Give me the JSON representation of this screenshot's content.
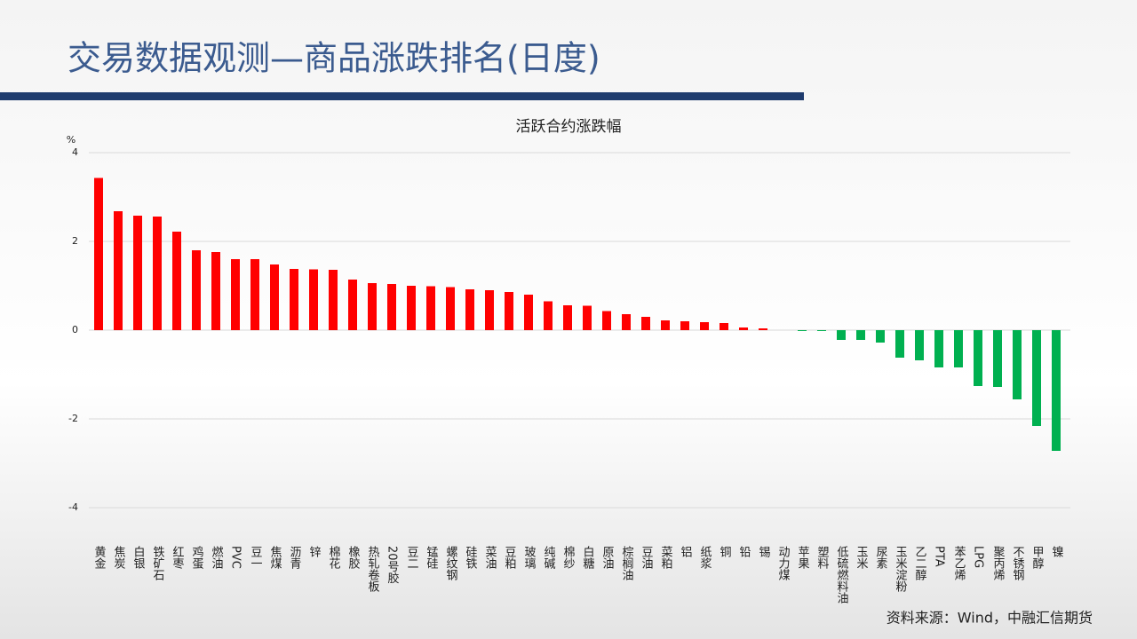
{
  "header": {
    "title": "交易数据观测—商品涨跌排名(日度)"
  },
  "chart_data": {
    "type": "bar",
    "title": "活跃合约涨跌幅",
    "y_label": "%",
    "categories": [
      "黄金",
      "焦炭",
      "白银",
      "铁矿石",
      "红枣",
      "鸡蛋",
      "燃油",
      "PVC",
      "豆一",
      "焦煤",
      "沥青",
      "锌",
      "棉花",
      "橡胶",
      "热轧卷板",
      "20号胶",
      "豆二",
      "锰硅",
      "螺纹钢",
      "硅铁",
      "菜油",
      "豆粕",
      "玻璃",
      "纯碱",
      "棉纱",
      "白糖",
      "原油",
      "棕榈油",
      "豆油",
      "菜粕",
      "铝",
      "纸浆",
      "铜",
      "铅",
      "锡",
      "动力煤",
      "苹果",
      "塑料",
      "低硫燃料油",
      "玉米",
      "尿素",
      "玉米淀粉",
      "乙二醇",
      "PTA",
      "苯乙烯",
      "LPG",
      "聚丙烯",
      "不锈钢",
      "甲醇",
      "镍"
    ],
    "values": [
      3.43,
      2.68,
      2.58,
      2.56,
      2.22,
      1.8,
      1.76,
      1.6,
      1.6,
      1.48,
      1.38,
      1.37,
      1.36,
      1.14,
      1.06,
      1.04,
      1.0,
      0.99,
      0.97,
      0.92,
      0.9,
      0.86,
      0.8,
      0.65,
      0.56,
      0.55,
      0.43,
      0.36,
      0.3,
      0.22,
      0.2,
      0.18,
      0.16,
      0.06,
      0.04,
      0,
      -0.02,
      -0.02,
      -0.22,
      -0.22,
      -0.28,
      -0.62,
      -0.68,
      -0.84,
      -0.84,
      -1.26,
      -1.28,
      -1.56,
      -2.16,
      -2.72
    ],
    "positive_color": "#ff0000",
    "negative_color": "#00b050",
    "ylim": [
      -4,
      4
    ],
    "yticks": [
      -4,
      -2,
      0,
      2,
      4
    ],
    "grid": true
  },
  "source": "资料来源：Wind，中融汇信期货"
}
